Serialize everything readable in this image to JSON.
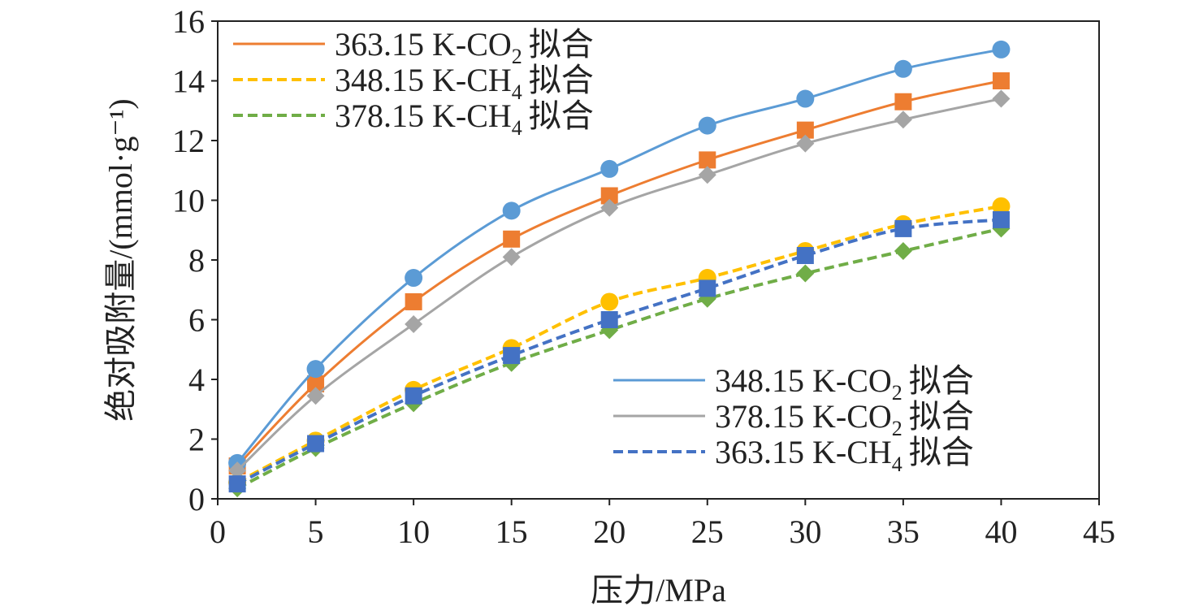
{
  "chart_data": {
    "type": "line",
    "title": "",
    "xlabel": "压力/MPa",
    "ylabel": "绝对吸附量/(mmol·g⁻¹)",
    "xlim": [
      0,
      45
    ],
    "ylim": [
      0,
      16
    ],
    "xticks": [
      "0",
      "5",
      "10",
      "15",
      "20",
      "25",
      "30",
      "35",
      "40",
      "45"
    ],
    "yticks": [
      "0",
      "2",
      "4",
      "6",
      "8",
      "10",
      "12",
      "14",
      "16"
    ],
    "grid": false,
    "legend_groups": [
      "top-left",
      "bottom-right"
    ],
    "legend_suffix": "拟合",
    "x": [
      1,
      5,
      10,
      15,
      20,
      25,
      30,
      35,
      40
    ],
    "series": [
      {
        "name": "363.15 K-CO₂",
        "base": "363.15 K-CO",
        "sub": "2",
        "color": "#ED7D31",
        "dash": "solid",
        "marker": "square",
        "legend_group": 0,
        "values": [
          1.1,
          3.85,
          6.6,
          8.7,
          10.15,
          11.35,
          12.35,
          13.3,
          14.0
        ]
      },
      {
        "name": "348.15 K-CH₄",
        "base": "348.15 K-CH",
        "sub": "4",
        "color": "#FFC000",
        "dash": "dashed",
        "marker": "circle",
        "legend_group": 0,
        "values": [
          0.55,
          1.95,
          3.65,
          5.05,
          6.6,
          7.4,
          8.3,
          9.2,
          9.8
        ]
      },
      {
        "name": "378.15 K-CH₄",
        "base": "378.15 K-CH",
        "sub": "4",
        "color": "#70AD47",
        "dash": "dashed",
        "marker": "diamond",
        "legend_group": 0,
        "values": [
          0.35,
          1.7,
          3.2,
          4.55,
          5.65,
          6.7,
          7.55,
          8.3,
          9.05
        ]
      },
      {
        "name": "348.15 K-CO₂",
        "base": "348.15 K-CO",
        "sub": "2",
        "color": "#5B9BD5",
        "dash": "solid",
        "marker": "circle",
        "legend_group": 1,
        "values": [
          1.2,
          4.35,
          7.4,
          9.65,
          11.05,
          12.5,
          13.4,
          14.4,
          15.05
        ]
      },
      {
        "name": "378.15 K-CO₂",
        "base": "378.15 K-CO",
        "sub": "2",
        "color": "#A5A5A5",
        "dash": "solid",
        "marker": "diamond",
        "legend_group": 1,
        "values": [
          0.95,
          3.45,
          5.85,
          8.1,
          9.75,
          10.85,
          11.9,
          12.7,
          13.4
        ]
      },
      {
        "name": "363.15 K-CH₄",
        "base": "363.15 K-CH",
        "sub": "4",
        "color": "#4472C4",
        "dash": "dashed",
        "marker": "square",
        "legend_group": 1,
        "values": [
          0.5,
          1.85,
          3.45,
          4.8,
          6.0,
          7.05,
          8.15,
          9.05,
          9.35
        ]
      }
    ]
  }
}
